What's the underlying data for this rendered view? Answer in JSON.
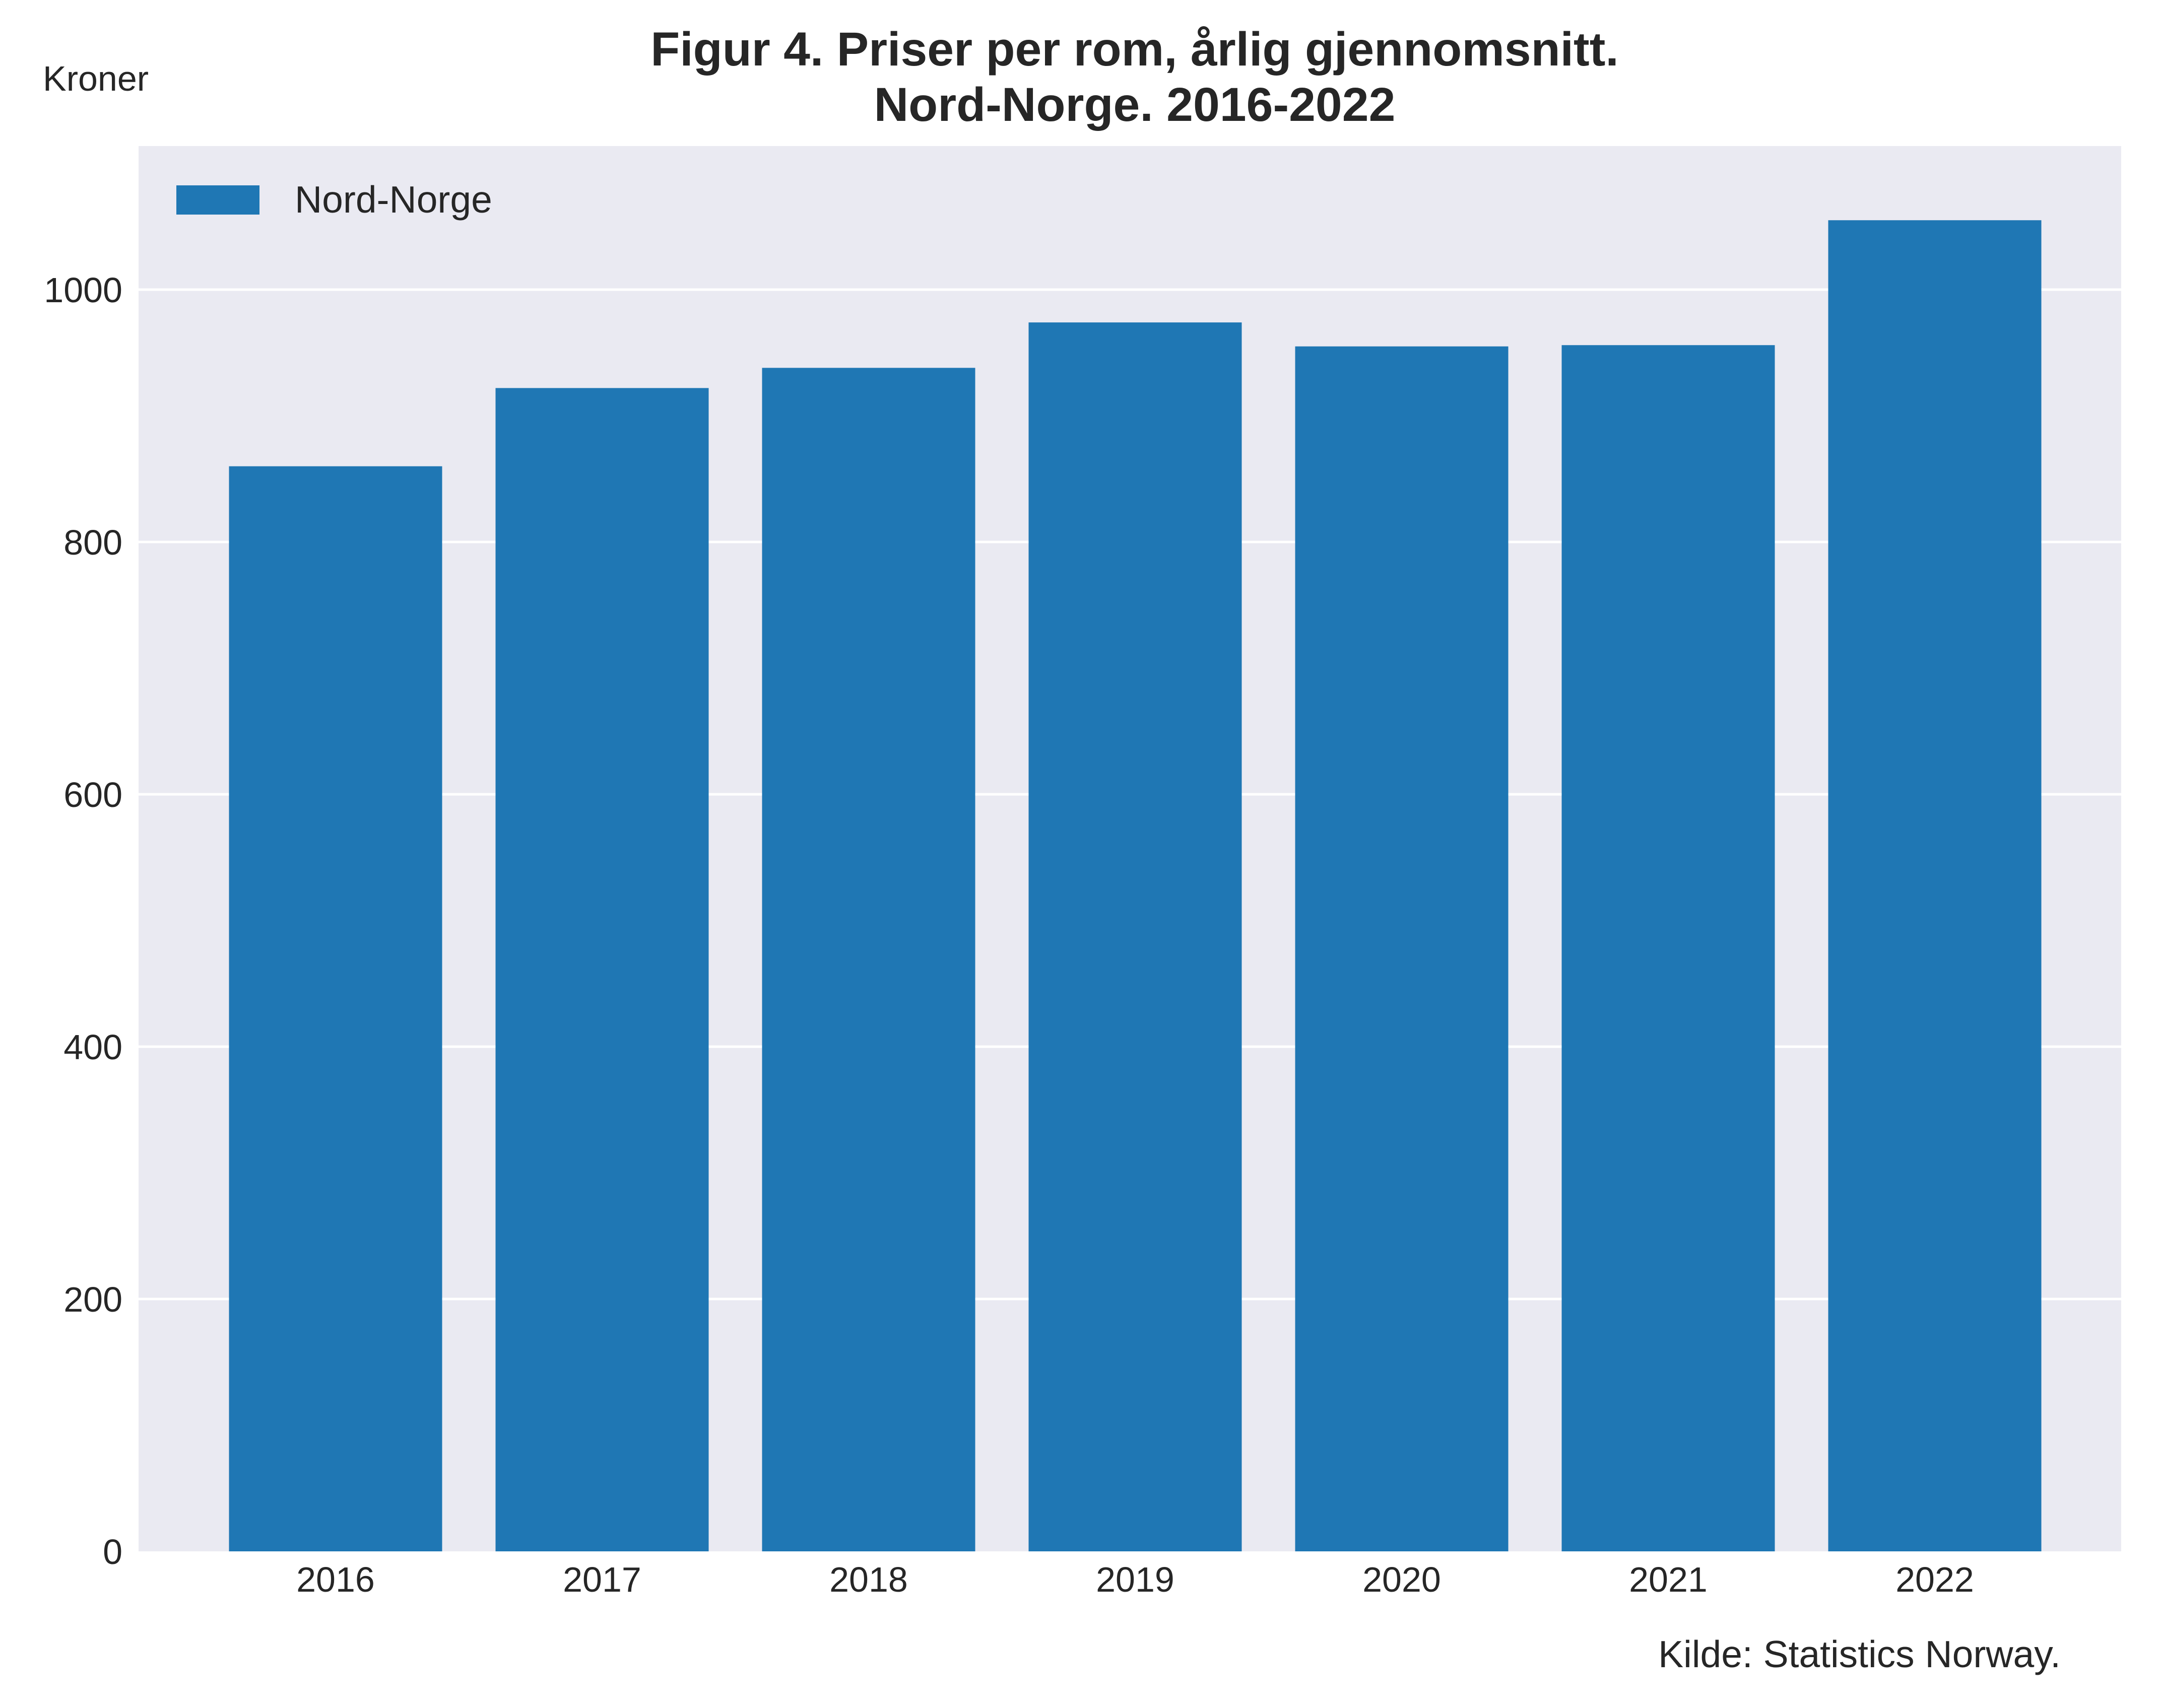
{
  "chart_data": {
    "type": "bar",
    "title_line1": "Figur 4. Priser per rom, årlig gjennomsnitt.",
    "title_line2": "Nord-Norge. 2016-2022",
    "ylabel": "Kroner",
    "xlabel": "",
    "categories": [
      "2016",
      "2017",
      "2018",
      "2019",
      "2020",
      "2021",
      "2022"
    ],
    "series": [
      {
        "name": "Nord-Norge",
        "values": [
          860,
          922,
          938,
          974,
          955,
          956,
          1055
        ],
        "color": "#1f77b4"
      }
    ],
    "ylim": [
      0,
      1100
    ],
    "yticks": [
      0,
      200,
      400,
      600,
      800,
      1000
    ],
    "grid": true,
    "grid_axis": "y",
    "legend_position": "top-left",
    "plot_background": "#eaeaf2",
    "source": "Kilde: Statistics Norway."
  }
}
